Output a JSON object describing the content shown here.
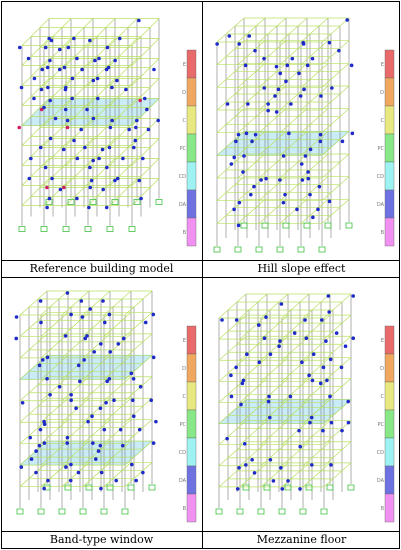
{
  "panels": [
    {
      "id": "reference",
      "caption": "Reference building model"
    },
    {
      "id": "hill",
      "caption": "Hill slope effect"
    },
    {
      "id": "band",
      "caption": "Band-type window"
    },
    {
      "id": "mezzanine",
      "caption": "Mezzanine floor"
    }
  ],
  "legend": {
    "labels": [
      "E",
      "D",
      "C",
      "PC",
      "CD",
      "DA",
      "B"
    ],
    "colors": [
      "#e86a6a",
      "#f0a860",
      "#e8e880",
      "#88e888",
      "#9ef2f2",
      "#6e72e0",
      "#f090f0"
    ]
  },
  "colors": {
    "frame": "#b8e060",
    "slab": "#9edcf0",
    "hinge": "#1f2bc8",
    "hinge_alt": "#d02060",
    "column": "#7a7a7a",
    "support": "#40c040"
  }
}
